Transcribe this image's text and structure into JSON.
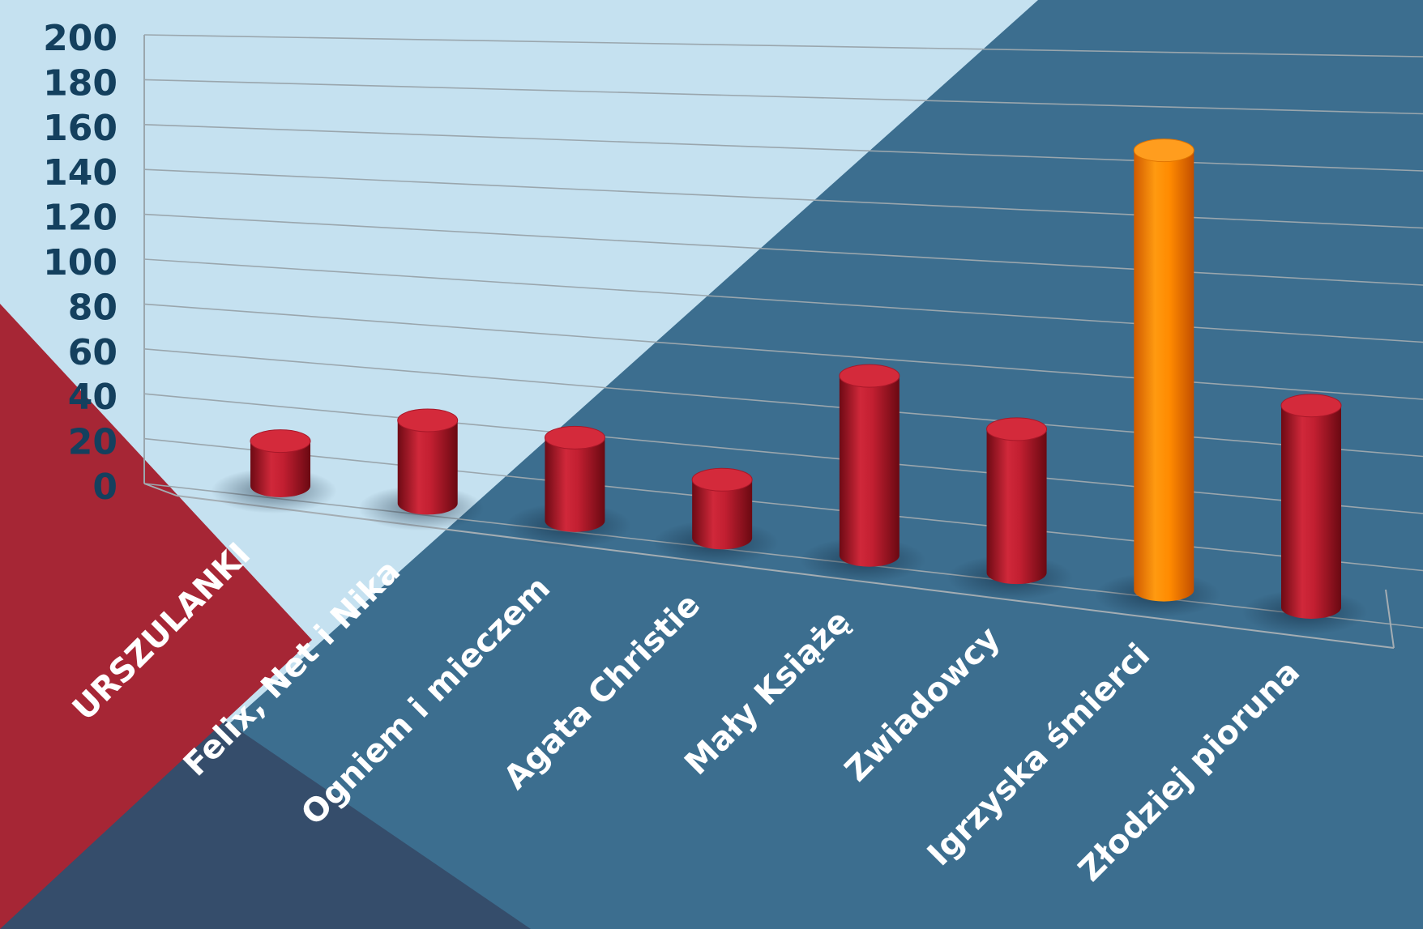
{
  "chart_data": {
    "type": "bar",
    "categories": [
      "URSZULANKI",
      "Felix, Net i Nika",
      "Ogniem i mieczem",
      "Agata Christie",
      "Mały Książę",
      "Zwiadowcy",
      "Igrzyska śmierci",
      "Złodziej pioruna"
    ],
    "values": [
      20,
      37,
      37,
      26,
      80,
      64,
      196,
      90
    ],
    "highlight_index": 6,
    "ylim": [
      0,
      200
    ],
    "yticks": [
      0,
      20,
      40,
      60,
      80,
      100,
      120,
      140,
      160,
      180,
      200
    ],
    "title": "",
    "xlabel": "",
    "ylabel": "",
    "grid": true,
    "colors": {
      "bar": "#b81c2e",
      "highlight": "#ff8a00",
      "background_light": "#c5e1f0",
      "background_mid": "#3c6e8f",
      "background_dark": "#354d6b",
      "background_red": "#a62635",
      "tick_label": "#14405e"
    }
  }
}
